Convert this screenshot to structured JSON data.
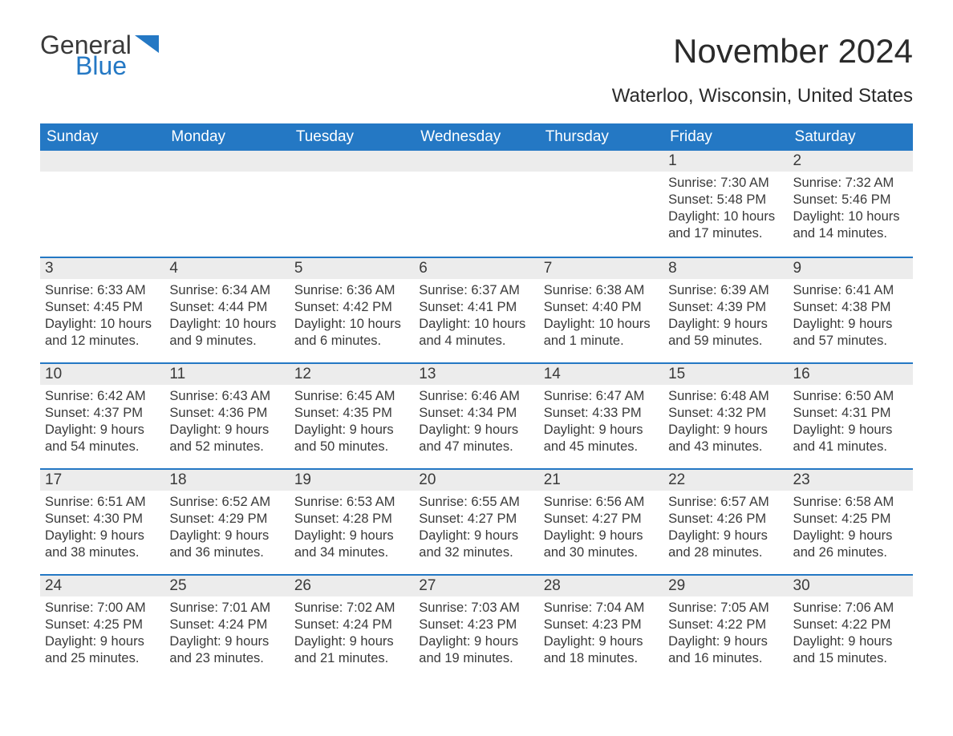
{
  "logo": {
    "general": "General",
    "blue": "Blue",
    "triangle_color": "#2478c4"
  },
  "title": "November 2024",
  "location": "Waterloo, Wisconsin, United States",
  "colors": {
    "header_bg": "#2478c4",
    "header_text": "#ffffff",
    "daynum_bg": "#ececec",
    "row_divider": "#2478c4",
    "body_text": "#3a3a3a",
    "background": "#ffffff"
  },
  "fonts": {
    "title_size": 42,
    "location_size": 24,
    "dow_size": 19,
    "daynum_size": 19,
    "body_size": 16.5
  },
  "day_headers": [
    "Sunday",
    "Monday",
    "Tuesday",
    "Wednesday",
    "Thursday",
    "Friday",
    "Saturday"
  ],
  "weeks": [
    [
      null,
      null,
      null,
      null,
      null,
      {
        "n": "1",
        "sunrise": "Sunrise: 7:30 AM",
        "sunset": "Sunset: 5:48 PM",
        "daylight1": "Daylight: 10 hours",
        "daylight2": "and 17 minutes."
      },
      {
        "n": "2",
        "sunrise": "Sunrise: 7:32 AM",
        "sunset": "Sunset: 5:46 PM",
        "daylight1": "Daylight: 10 hours",
        "daylight2": "and 14 minutes."
      }
    ],
    [
      {
        "n": "3",
        "sunrise": "Sunrise: 6:33 AM",
        "sunset": "Sunset: 4:45 PM",
        "daylight1": "Daylight: 10 hours",
        "daylight2": "and 12 minutes."
      },
      {
        "n": "4",
        "sunrise": "Sunrise: 6:34 AM",
        "sunset": "Sunset: 4:44 PM",
        "daylight1": "Daylight: 10 hours",
        "daylight2": "and 9 minutes."
      },
      {
        "n": "5",
        "sunrise": "Sunrise: 6:36 AM",
        "sunset": "Sunset: 4:42 PM",
        "daylight1": "Daylight: 10 hours",
        "daylight2": "and 6 minutes."
      },
      {
        "n": "6",
        "sunrise": "Sunrise: 6:37 AM",
        "sunset": "Sunset: 4:41 PM",
        "daylight1": "Daylight: 10 hours",
        "daylight2": "and 4 minutes."
      },
      {
        "n": "7",
        "sunrise": "Sunrise: 6:38 AM",
        "sunset": "Sunset: 4:40 PM",
        "daylight1": "Daylight: 10 hours",
        "daylight2": "and 1 minute."
      },
      {
        "n": "8",
        "sunrise": "Sunrise: 6:39 AM",
        "sunset": "Sunset: 4:39 PM",
        "daylight1": "Daylight: 9 hours",
        "daylight2": "and 59 minutes."
      },
      {
        "n": "9",
        "sunrise": "Sunrise: 6:41 AM",
        "sunset": "Sunset: 4:38 PM",
        "daylight1": "Daylight: 9 hours",
        "daylight2": "and 57 minutes."
      }
    ],
    [
      {
        "n": "10",
        "sunrise": "Sunrise: 6:42 AM",
        "sunset": "Sunset: 4:37 PM",
        "daylight1": "Daylight: 9 hours",
        "daylight2": "and 54 minutes."
      },
      {
        "n": "11",
        "sunrise": "Sunrise: 6:43 AM",
        "sunset": "Sunset: 4:36 PM",
        "daylight1": "Daylight: 9 hours",
        "daylight2": "and 52 minutes."
      },
      {
        "n": "12",
        "sunrise": "Sunrise: 6:45 AM",
        "sunset": "Sunset: 4:35 PM",
        "daylight1": "Daylight: 9 hours",
        "daylight2": "and 50 minutes."
      },
      {
        "n": "13",
        "sunrise": "Sunrise: 6:46 AM",
        "sunset": "Sunset: 4:34 PM",
        "daylight1": "Daylight: 9 hours",
        "daylight2": "and 47 minutes."
      },
      {
        "n": "14",
        "sunrise": "Sunrise: 6:47 AM",
        "sunset": "Sunset: 4:33 PM",
        "daylight1": "Daylight: 9 hours",
        "daylight2": "and 45 minutes."
      },
      {
        "n": "15",
        "sunrise": "Sunrise: 6:48 AM",
        "sunset": "Sunset: 4:32 PM",
        "daylight1": "Daylight: 9 hours",
        "daylight2": "and 43 minutes."
      },
      {
        "n": "16",
        "sunrise": "Sunrise: 6:50 AM",
        "sunset": "Sunset: 4:31 PM",
        "daylight1": "Daylight: 9 hours",
        "daylight2": "and 41 minutes."
      }
    ],
    [
      {
        "n": "17",
        "sunrise": "Sunrise: 6:51 AM",
        "sunset": "Sunset: 4:30 PM",
        "daylight1": "Daylight: 9 hours",
        "daylight2": "and 38 minutes."
      },
      {
        "n": "18",
        "sunrise": "Sunrise: 6:52 AM",
        "sunset": "Sunset: 4:29 PM",
        "daylight1": "Daylight: 9 hours",
        "daylight2": "and 36 minutes."
      },
      {
        "n": "19",
        "sunrise": "Sunrise: 6:53 AM",
        "sunset": "Sunset: 4:28 PM",
        "daylight1": "Daylight: 9 hours",
        "daylight2": "and 34 minutes."
      },
      {
        "n": "20",
        "sunrise": "Sunrise: 6:55 AM",
        "sunset": "Sunset: 4:27 PM",
        "daylight1": "Daylight: 9 hours",
        "daylight2": "and 32 minutes."
      },
      {
        "n": "21",
        "sunrise": "Sunrise: 6:56 AM",
        "sunset": "Sunset: 4:27 PM",
        "daylight1": "Daylight: 9 hours",
        "daylight2": "and 30 minutes."
      },
      {
        "n": "22",
        "sunrise": "Sunrise: 6:57 AM",
        "sunset": "Sunset: 4:26 PM",
        "daylight1": "Daylight: 9 hours",
        "daylight2": "and 28 minutes."
      },
      {
        "n": "23",
        "sunrise": "Sunrise: 6:58 AM",
        "sunset": "Sunset: 4:25 PM",
        "daylight1": "Daylight: 9 hours",
        "daylight2": "and 26 minutes."
      }
    ],
    [
      {
        "n": "24",
        "sunrise": "Sunrise: 7:00 AM",
        "sunset": "Sunset: 4:25 PM",
        "daylight1": "Daylight: 9 hours",
        "daylight2": "and 25 minutes."
      },
      {
        "n": "25",
        "sunrise": "Sunrise: 7:01 AM",
        "sunset": "Sunset: 4:24 PM",
        "daylight1": "Daylight: 9 hours",
        "daylight2": "and 23 minutes."
      },
      {
        "n": "26",
        "sunrise": "Sunrise: 7:02 AM",
        "sunset": "Sunset: 4:24 PM",
        "daylight1": "Daylight: 9 hours",
        "daylight2": "and 21 minutes."
      },
      {
        "n": "27",
        "sunrise": "Sunrise: 7:03 AM",
        "sunset": "Sunset: 4:23 PM",
        "daylight1": "Daylight: 9 hours",
        "daylight2": "and 19 minutes."
      },
      {
        "n": "28",
        "sunrise": "Sunrise: 7:04 AM",
        "sunset": "Sunset: 4:23 PM",
        "daylight1": "Daylight: 9 hours",
        "daylight2": "and 18 minutes."
      },
      {
        "n": "29",
        "sunrise": "Sunrise: 7:05 AM",
        "sunset": "Sunset: 4:22 PM",
        "daylight1": "Daylight: 9 hours",
        "daylight2": "and 16 minutes."
      },
      {
        "n": "30",
        "sunrise": "Sunrise: 7:06 AM",
        "sunset": "Sunset: 4:22 PM",
        "daylight1": "Daylight: 9 hours",
        "daylight2": "and 15 minutes."
      }
    ]
  ]
}
